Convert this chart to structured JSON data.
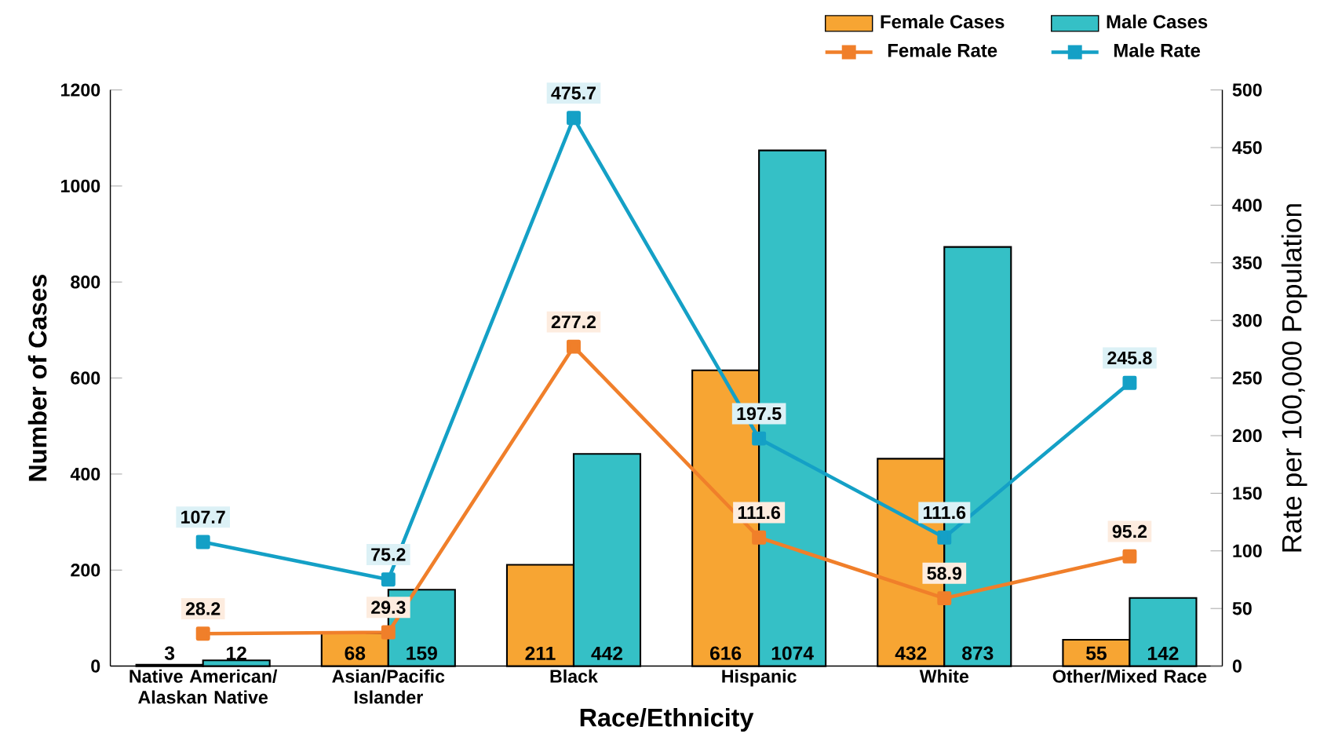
{
  "chart_data": {
    "type": "bar",
    "xlabel": "Race/Ethnicity",
    "ylabel": "Number of Cases",
    "y2label": "Rate per 100,000 Population",
    "categories": [
      "Native American/ Alaskan Native",
      "Asian/Pacific Islander",
      "Black",
      "Hispanic",
      "White",
      "Other/Mixed Race"
    ],
    "series": [
      {
        "name": "Female Cases",
        "color": "#f7a533",
        "values": [
          3,
          68,
          211,
          616,
          432,
          55
        ]
      },
      {
        "name": "Male Cases",
        "color": "#35c0c6",
        "values": [
          12,
          159,
          442,
          1074,
          873,
          142
        ]
      },
      {
        "name": "Female Rate",
        "type": "line",
        "axis": "y2",
        "color": "#f07f2a",
        "values": [
          28.2,
          29.3,
          277.2,
          111.6,
          58.9,
          95.2
        ]
      },
      {
        "name": "Male Rate",
        "type": "line",
        "axis": "y2",
        "color": "#14a0c6",
        "values": [
          107.7,
          75.2,
          475.7,
          197.5,
          111.6,
          245.8
        ]
      }
    ],
    "ylim": [
      0,
      1200
    ],
    "yticks": [
      0,
      200,
      400,
      600,
      800,
      1000,
      1200
    ],
    "y2lim": [
      0,
      500
    ],
    "y2ticks": [
      0,
      50,
      100,
      150,
      200,
      250,
      300,
      350,
      400,
      450,
      500
    ],
    "marker": "square",
    "data_labels": true,
    "legend": "top right"
  }
}
